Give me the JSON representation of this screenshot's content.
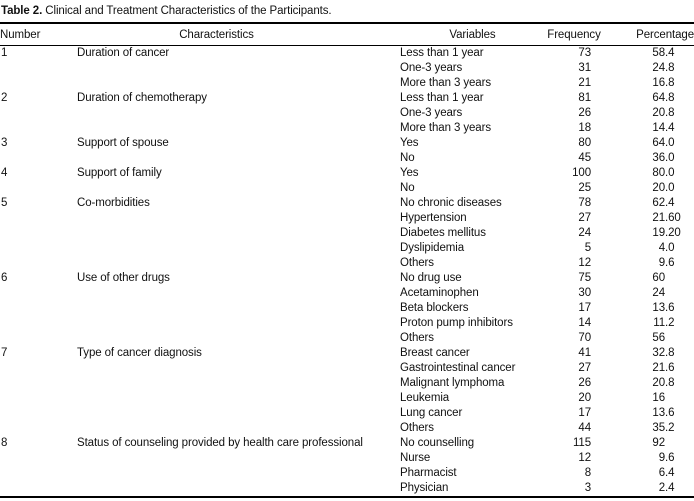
{
  "title": {
    "label": "Table 2.",
    "text": "Clinical and Treatment Characteristics of the Participants."
  },
  "table": {
    "columns": {
      "number": "Number",
      "characteristics": "Characteristics",
      "variables": "Variables",
      "frequency": "Frequency",
      "percentage": "Percentage"
    },
    "groups": [
      {
        "number": "1",
        "characteristic": "Duration of cancer",
        "items": [
          {
            "variable": "Less than 1 year",
            "frequency": "73",
            "percentage": "58.4"
          },
          {
            "variable": "One-3 years",
            "frequency": "31",
            "percentage": "24.8"
          },
          {
            "variable": "More than 3 years",
            "frequency": "21",
            "percentage": "16.8"
          }
        ]
      },
      {
        "number": "2",
        "characteristic": "Duration of chemotherapy",
        "items": [
          {
            "variable": "Less than 1 year",
            "frequency": "81",
            "percentage": "64.8"
          },
          {
            "variable": "One-3 years",
            "frequency": "26",
            "percentage": "20.8"
          },
          {
            "variable": "More than 3 years",
            "frequency": "18",
            "percentage": "14.4"
          }
        ]
      },
      {
        "number": "3",
        "characteristic": "Support of spouse",
        "items": [
          {
            "variable": "Yes",
            "frequency": "80",
            "percentage": "64.0"
          },
          {
            "variable": "No",
            "frequency": "45",
            "percentage": "36.0"
          }
        ]
      },
      {
        "number": "4",
        "characteristic": "Support of family",
        "items": [
          {
            "variable": "Yes",
            "frequency": "100",
            "percentage": "80.0"
          },
          {
            "variable": "No",
            "frequency": "25",
            "percentage": "20.0"
          }
        ]
      },
      {
        "number": "5",
        "characteristic": "Co-morbidities",
        "items": [
          {
            "variable": "No chronic diseases",
            "frequency": "78",
            "percentage": "62.4"
          },
          {
            "variable": "Hypertension",
            "frequency": "27",
            "percentage": "21.60"
          },
          {
            "variable": "Diabetes mellitus",
            "frequency": "24",
            "percentage": "19.20"
          },
          {
            "variable": "Dyslipidemia",
            "frequency": "5",
            "percentage": "4.0"
          },
          {
            "variable": "Others",
            "frequency": "12",
            "percentage": "9.6"
          }
        ]
      },
      {
        "number": "6",
        "characteristic": "Use of other drugs",
        "items": [
          {
            "variable": "No drug use",
            "frequency": "75",
            "percentage": "60"
          },
          {
            "variable": "Acetaminophen",
            "frequency": "30",
            "percentage": "24"
          },
          {
            "variable": "Beta blockers",
            "frequency": "17",
            "percentage": "13.6"
          },
          {
            "variable": "Proton pump inhibitors",
            "frequency": "14",
            "percentage": "11.2"
          },
          {
            "variable": "Others",
            "frequency": "70",
            "percentage": "56"
          }
        ]
      },
      {
        "number": "7",
        "characteristic": "Type of cancer diagnosis",
        "items": [
          {
            "variable": "Breast cancer",
            "frequency": "41",
            "percentage": "32.8"
          },
          {
            "variable": "Gastrointestinal cancer",
            "frequency": "27",
            "percentage": "21.6"
          },
          {
            "variable": "Malignant lymphoma",
            "frequency": "26",
            "percentage": "20.8"
          },
          {
            "variable": "Leukemia",
            "frequency": "20",
            "percentage": "16"
          },
          {
            "variable": "Lung cancer",
            "frequency": "17",
            "percentage": "13.6"
          },
          {
            "variable": "Others",
            "frequency": "44",
            "percentage": "35.2"
          }
        ]
      },
      {
        "number": "8",
        "characteristic": "Status of counseling provided by health care professional",
        "items": [
          {
            "variable": "No counselling",
            "frequency": "115",
            "percentage": "92"
          },
          {
            "variable": "Nurse",
            "frequency": "12",
            "percentage": "9.6"
          },
          {
            "variable": "Pharmacist",
            "frequency": "8",
            "percentage": "6.4"
          },
          {
            "variable": "Physician",
            "frequency": "3",
            "percentage": "2.4"
          }
        ]
      }
    ]
  }
}
